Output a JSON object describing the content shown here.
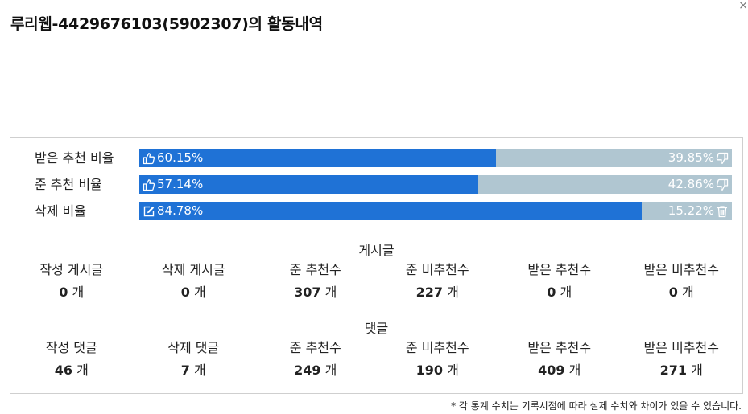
{
  "close_symbol": "×",
  "title": "루리웹-4429676103(5902307)의 활동내역",
  "ratios": [
    {
      "label": "받은 추천 비율",
      "left_value": "60.15%",
      "right_value": "39.85%",
      "fraction": 0.6015,
      "left_icon": "thumbs-up-icon",
      "right_icon": "thumbs-down-icon"
    },
    {
      "label": "준 추천 비율",
      "left_value": "57.14%",
      "right_value": "42.86%",
      "fraction": 0.5714,
      "left_icon": "thumbs-up-icon",
      "right_icon": "thumbs-down-icon"
    },
    {
      "label": "삭제 비율",
      "left_value": "84.78%",
      "right_value": "15.22%",
      "fraction": 0.8478,
      "left_icon": "edit-icon",
      "right_icon": "trash-icon"
    }
  ],
  "colors": {
    "bar_fill": "#1f72d6",
    "bar_track": "#b0c6d1"
  },
  "posts": {
    "title": "게시글",
    "stats": [
      {
        "label": "작성 게시글",
        "value": "0",
        "unit": "개"
      },
      {
        "label": "삭제 게시글",
        "value": "0",
        "unit": "개"
      },
      {
        "label": "준 추천수",
        "value": "307",
        "unit": "개"
      },
      {
        "label": "준 비추천수",
        "value": "227",
        "unit": "개"
      },
      {
        "label": "받은 추천수",
        "value": "0",
        "unit": "개"
      },
      {
        "label": "받은 비추천수",
        "value": "0",
        "unit": "개"
      }
    ]
  },
  "comments": {
    "title": "댓글",
    "stats": [
      {
        "label": "작성 댓글",
        "value": "46",
        "unit": "개"
      },
      {
        "label": "삭제 댓글",
        "value": "7",
        "unit": "개"
      },
      {
        "label": "준 추천수",
        "value": "249",
        "unit": "개"
      },
      {
        "label": "준 비추천수",
        "value": "190",
        "unit": "개"
      },
      {
        "label": "받은 추천수",
        "value": "409",
        "unit": "개"
      },
      {
        "label": "받은 비추천수",
        "value": "271",
        "unit": "개"
      }
    ]
  },
  "footnote": "* 각 통계 수치는 기록시점에 따라 실제 수치와 차이가 있을 수 있습니다."
}
